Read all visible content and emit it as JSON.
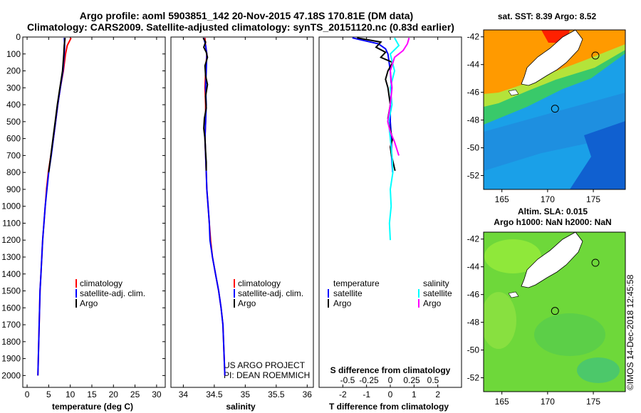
{
  "title_line1": "Argo profile: aoml 5903851_142 20-Nov-2015 47.18S 170.81E (DM data)",
  "title_line2": "Climatology: CARS2009. Satellite-adjusted climatology: synTS_20151120.nc (0.83d earlier)",
  "chart_data": [
    {
      "type": "line",
      "name": "temperature",
      "xlabel": "temperature (deg C)",
      "ylabel": "",
      "xlim": [
        -1,
        32
      ],
      "ylim": [
        2070,
        0
      ],
      "xticks": [
        0,
        5,
        10,
        15,
        20,
        25,
        30
      ],
      "yticks": [
        0,
        100,
        200,
        300,
        400,
        500,
        600,
        700,
        800,
        900,
        1000,
        1100,
        1200,
        1300,
        1400,
        1500,
        1600,
        1700,
        1800,
        1900,
        2000
      ],
      "series": [
        {
          "name": "climatology",
          "color": "#ff0000",
          "points": [
            [
              10.2,
              5
            ],
            [
              9.3,
              50
            ],
            [
              8.9,
              100
            ],
            [
              8.4,
              200
            ],
            [
              7.7,
              300
            ],
            [
              7.1,
              400
            ],
            [
              6.6,
              500
            ],
            [
              6.1,
              600
            ],
            [
              5.5,
              700
            ],
            [
              4.9,
              800
            ],
            [
              4.5,
              900
            ],
            [
              4.2,
              1000
            ],
            [
              3.9,
              1100
            ],
            [
              3.6,
              1200
            ],
            [
              3.4,
              1300
            ],
            [
              3.2,
              1400
            ],
            [
              3.0,
              1500
            ],
            [
              2.9,
              1600
            ],
            [
              2.8,
              1700
            ],
            [
              2.7,
              1800
            ],
            [
              2.6,
              1900
            ],
            [
              2.5,
              2000
            ]
          ]
        },
        {
          "name": "satellite-adj. clim.",
          "color": "#0000ff",
          "points": [
            [
              8.6,
              5
            ],
            [
              8.7,
              50
            ],
            [
              8.6,
              100
            ],
            [
              8.3,
              200
            ],
            [
              7.7,
              300
            ],
            [
              7.1,
              400
            ],
            [
              6.6,
              500
            ],
            [
              6.1,
              600
            ],
            [
              5.6,
              700
            ],
            [
              5.0,
              800
            ],
            [
              4.6,
              900
            ],
            [
              4.2,
              1000
            ],
            [
              3.9,
              1100
            ],
            [
              3.6,
              1200
            ],
            [
              3.4,
              1300
            ],
            [
              3.2,
              1400
            ],
            [
              3.0,
              1500
            ],
            [
              2.9,
              1600
            ],
            [
              2.8,
              1700
            ],
            [
              2.7,
              1800
            ],
            [
              2.6,
              1900
            ],
            [
              2.5,
              2000
            ]
          ]
        },
        {
          "name": "Argo",
          "color": "#000000",
          "points": [
            [
              8.8,
              5
            ],
            [
              8.6,
              50
            ],
            [
              8.5,
              100
            ],
            [
              8.2,
              200
            ],
            [
              7.6,
              300
            ],
            [
              7.0,
              400
            ],
            [
              6.5,
              500
            ],
            [
              6.0,
              600
            ],
            [
              5.5,
              700
            ],
            [
              5.0,
              800
            ]
          ]
        }
      ],
      "legend": [
        "climatology",
        "satellite-adj. clim.",
        "Argo"
      ]
    },
    {
      "type": "line",
      "name": "salinity",
      "xlabel": "salinity",
      "xlim": [
        33.8,
        36.1
      ],
      "ylim": [
        2070,
        0
      ],
      "xticks": [
        34,
        34.5,
        35,
        35.5,
        36
      ],
      "xticklabels": [
        "34",
        "34.5",
        "35",
        "35.5",
        "36"
      ],
      "series": [
        {
          "name": "climatology",
          "color": "#ff0000",
          "points": [
            [
              34.35,
              5
            ],
            [
              34.36,
              50
            ],
            [
              34.38,
              100
            ],
            [
              34.36,
              200
            ],
            [
              34.35,
              300
            ],
            [
              34.36,
              400
            ],
            [
              34.36,
              500
            ],
            [
              34.35,
              600
            ],
            [
              34.36,
              700
            ],
            [
              34.37,
              800
            ],
            [
              34.38,
              900
            ],
            [
              34.4,
              1000
            ],
            [
              34.42,
              1100
            ],
            [
              34.44,
              1200
            ],
            [
              34.47,
              1300
            ],
            [
              34.52,
              1400
            ],
            [
              34.57,
              1500
            ],
            [
              34.61,
              1600
            ],
            [
              34.64,
              1700
            ],
            [
              34.65,
              1800
            ],
            [
              34.66,
              1900
            ],
            [
              34.67,
              2000
            ]
          ]
        },
        {
          "name": "satellite-adj. clim.",
          "color": "#0000ff",
          "points": [
            [
              34.33,
              5
            ],
            [
              34.36,
              50
            ],
            [
              34.38,
              100
            ],
            [
              34.37,
              200
            ],
            [
              34.36,
              300
            ],
            [
              34.37,
              400
            ],
            [
              34.36,
              500
            ],
            [
              34.35,
              600
            ],
            [
              34.36,
              700
            ],
            [
              34.37,
              800
            ],
            [
              34.38,
              900
            ],
            [
              34.4,
              1000
            ],
            [
              34.42,
              1100
            ],
            [
              34.43,
              1200
            ],
            [
              34.47,
              1300
            ],
            [
              34.52,
              1400
            ],
            [
              34.57,
              1500
            ],
            [
              34.61,
              1600
            ],
            [
              34.64,
              1700
            ],
            [
              34.65,
              1800
            ],
            [
              34.66,
              1900
            ],
            [
              34.67,
              2000
            ]
          ]
        },
        {
          "name": "Argo",
          "color": "#000000",
          "points": [
            [
              34.32,
              5
            ],
            [
              34.36,
              30
            ],
            [
              34.33,
              60
            ],
            [
              34.37,
              90
            ],
            [
              34.39,
              120
            ],
            [
              34.35,
              170
            ],
            [
              34.36,
              230
            ],
            [
              34.39,
              280
            ],
            [
              34.36,
              350
            ],
            [
              34.37,
              420
            ],
            [
              34.34,
              480
            ],
            [
              34.33,
              540
            ],
            [
              34.35,
              600
            ],
            [
              34.36,
              680
            ],
            [
              34.37,
              740
            ],
            [
              34.37,
              790
            ]
          ]
        }
      ],
      "legend": [
        "climatology",
        "satellite-adj. clim.",
        "Argo"
      ],
      "credit_line1": "US ARGO PROJECT",
      "credit_line2": "PI: DEAN ROEMMICH"
    },
    {
      "type": "line",
      "name": "difference",
      "xlabel": "T difference from climatology",
      "xlabel_top": "S difference from climatology",
      "xlim": [
        -3,
        3
      ],
      "ylim": [
        2070,
        0
      ],
      "xticks": [
        -2,
        -1,
        0,
        1,
        2
      ],
      "sticks": [
        -0.5,
        -0.25,
        0,
        0.25,
        0.5
      ],
      "sticklabels": [
        "-0.5",
        "-0.25",
        "0",
        "0.25",
        "0.5"
      ],
      "series": [
        {
          "name": "T satellite",
          "color": "#0000ff",
          "points": [
            [
              -1.6,
              5
            ],
            [
              -0.5,
              40
            ],
            [
              -0.2,
              70
            ],
            [
              -0.1,
              100
            ],
            [
              0.0,
              200
            ],
            [
              0.05,
              300
            ],
            [
              0.0,
              400
            ],
            [
              0.0,
              500
            ],
            [
              0.05,
              600
            ],
            [
              0.05,
              700
            ],
            [
              0.1,
              800
            ]
          ]
        },
        {
          "name": "T Argo",
          "color": "#000000",
          "points": [
            [
              -1.4,
              5
            ],
            [
              -0.4,
              30
            ],
            [
              -0.6,
              60
            ],
            [
              -0.2,
              90
            ],
            [
              -0.4,
              120
            ],
            [
              0.1,
              150
            ],
            [
              -0.1,
              200
            ],
            [
              -0.2,
              250
            ],
            [
              -0.1,
              300
            ],
            [
              0.0,
              400
            ],
            [
              -0.1,
              480
            ],
            [
              0.0,
              550
            ],
            [
              0.1,
              600
            ],
            [
              0.0,
              650
            ],
            [
              0.05,
              700
            ],
            [
              0.15,
              760
            ],
            [
              0.2,
              790
            ]
          ]
        },
        {
          "name": "S satellite",
          "color": "#00ffff",
          "points": [
            [
              0.05,
              5
            ],
            [
              0.1,
              50
            ],
            [
              0.0,
              100
            ],
            [
              0.05,
              200
            ],
            [
              0.0,
              300
            ],
            [
              0.02,
              400
            ],
            [
              -0.02,
              500
            ],
            [
              0.0,
              600
            ],
            [
              0.02,
              700
            ],
            [
              0.03,
              800
            ],
            [
              0.0,
              900
            ],
            [
              0.01,
              1000
            ],
            [
              -0.01,
              1100
            ],
            [
              0.0,
              1200
            ]
          ]
        },
        {
          "name": "S Argo",
          "color": "#ff00ff",
          "points": [
            [
              0.22,
              5
            ],
            [
              0.2,
              40
            ],
            [
              0.15,
              80
            ],
            [
              0.05,
              120
            ],
            [
              0.0,
              200
            ],
            [
              0.02,
              300
            ],
            [
              0.0,
              400
            ],
            [
              -0.03,
              500
            ],
            [
              0.0,
              560
            ],
            [
              0.05,
              620
            ],
            [
              0.1,
              700
            ]
          ]
        }
      ],
      "legend_temperature_header": "temperature",
      "legend_salinity_header": "salinity",
      "legend_temperature": [
        "satellite",
        "Argo"
      ],
      "legend_salinity": [
        "satellite",
        "Argo"
      ]
    },
    {
      "type": "heatmap",
      "name": "sst_map",
      "title": "sat. SST: 8.39 Argo: 8.52",
      "xticks": [
        165,
        170,
        175
      ],
      "yticks": [
        -42,
        -44,
        -46,
        -48,
        -50,
        -52
      ],
      "xlim": [
        163,
        178.5
      ],
      "ylim": [
        -53,
        -41.5
      ]
    },
    {
      "type": "heatmap",
      "name": "sla_map",
      "title_line1": "Altim. SLA: 0.015",
      "title_line2": "Argo h1000: NaN h2000: NaN",
      "xticks": [
        165,
        170,
        175
      ],
      "yticks": [
        -42,
        -44,
        -46,
        -48,
        -50,
        -52
      ],
      "xlim": [
        163,
        178.5
      ],
      "ylim": [
        -53,
        -41.5
      ]
    }
  ],
  "watermark": "©IMOS 14-Dec-2018 12:45:58"
}
